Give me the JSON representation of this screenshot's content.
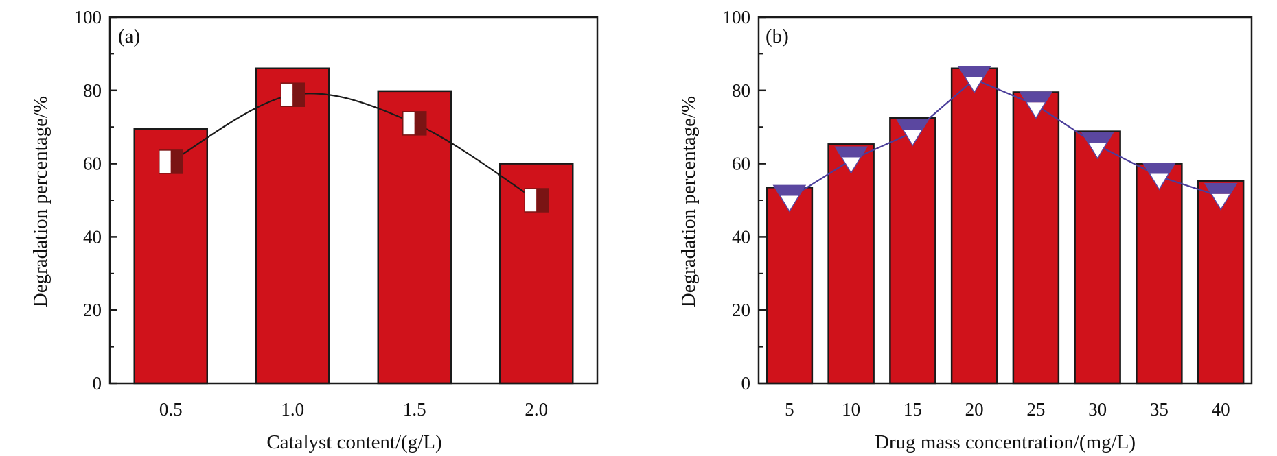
{
  "colors": {
    "bar_fill": "#D0121B",
    "bar_stroke": "#1a1a1a",
    "axis": "#1a1a1a",
    "marker_a_light": "#FFFFFF",
    "marker_a_dark": "#7A1414",
    "marker_b_fill": "#5B47A0",
    "marker_b_light": "#FFFFFF",
    "line_a": "#1a1a1a",
    "line_b": "#4A3D9A"
  },
  "chart_data": [
    {
      "type": "bar",
      "panel_label": "(a)",
      "categories": [
        "0.5",
        "1.0",
        "1.5",
        "2.0"
      ],
      "xlabel": "Catalyst content/(g/L)",
      "ylabel": "Degradation percentage/%",
      "ylim": [
        0,
        100
      ],
      "yticks": [
        "0",
        "20",
        "40",
        "60",
        "80",
        "100"
      ],
      "series": [
        {
          "type": "bar",
          "values": [
            69.5,
            86,
            79.8,
            60
          ]
        },
        {
          "type": "line-smooth",
          "marker": "half-filled-square",
          "values": [
            60.5,
            78.8,
            71,
            50
          ]
        }
      ],
      "grid": false,
      "legend": "none"
    },
    {
      "type": "bar",
      "panel_label": "(b)",
      "categories": [
        "5",
        "10",
        "15",
        "20",
        "25",
        "30",
        "35",
        "40"
      ],
      "xlabel": "Drug mass concentration/(mg/L)",
      "ylabel": "Degradation percentage/%",
      "ylim": [
        0,
        100
      ],
      "yticks": [
        "0",
        "20",
        "40",
        "60",
        "80",
        "100"
      ],
      "series": [
        {
          "type": "bar",
          "values": [
            53.5,
            65.3,
            72.5,
            86,
            79.5,
            68.8,
            60,
            55.3
          ]
        },
        {
          "type": "line",
          "marker": "half-filled-down-triangle",
          "values": [
            50.5,
            61,
            68.5,
            83,
            76,
            65,
            56.5,
            51
          ]
        }
      ],
      "grid": false,
      "legend": "none"
    }
  ]
}
